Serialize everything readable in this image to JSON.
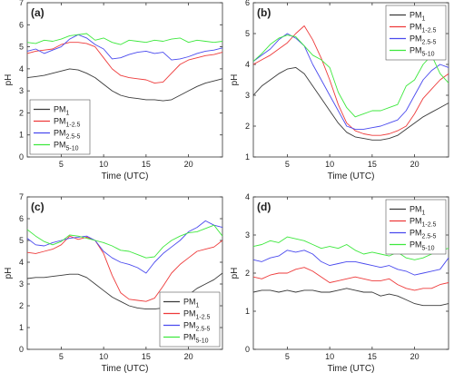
{
  "colors": {
    "PM1": "#3a3a3a",
    "PM1-2.5": "#ee3b3b",
    "PM2.5-5": "#4a4aee",
    "PM5-10": "#3ee83e"
  },
  "chart_data": [
    {
      "type": "line",
      "panel_label": "(a)",
      "xlabel": "Time (UTC)",
      "ylabel": "pH",
      "xlim": [
        1,
        24
      ],
      "ylim": [
        0,
        7
      ],
      "xticks": [
        5,
        10,
        15,
        20
      ],
      "yticks": [
        0,
        1,
        2,
        3,
        4,
        5,
        6,
        7
      ],
      "legend_position": "bottom-left",
      "x": [
        1,
        2,
        3,
        4,
        5,
        6,
        7,
        8,
        9,
        10,
        11,
        12,
        13,
        14,
        15,
        16,
        17,
        18,
        19,
        20,
        21,
        22,
        23,
        24
      ],
      "series": [
        {
          "name": "PM",
          "sub": "1",
          "color_key": "PM1",
          "values": [
            3.6,
            3.65,
            3.7,
            3.8,
            3.9,
            4.0,
            3.95,
            3.8,
            3.6,
            3.3,
            3.0,
            2.8,
            2.7,
            2.65,
            2.6,
            2.6,
            2.55,
            2.6,
            2.8,
            3.0,
            3.2,
            3.35,
            3.45,
            3.55
          ]
        },
        {
          "name": "PM",
          "sub": "1-2.5",
          "color_key": "PM1-2.5",
          "values": [
            4.7,
            4.8,
            4.85,
            4.9,
            5.1,
            5.2,
            5.2,
            5.15,
            5.0,
            4.5,
            4.0,
            3.7,
            3.6,
            3.55,
            3.5,
            3.35,
            3.4,
            3.8,
            4.2,
            4.4,
            4.5,
            4.6,
            4.65,
            4.75
          ]
        },
        {
          "name": "PM",
          "sub": "2.5-5",
          "color_key": "PM2.5-5",
          "values": [
            4.8,
            4.9,
            4.7,
            4.85,
            5.0,
            5.35,
            5.55,
            5.4,
            5.1,
            4.9,
            4.45,
            4.5,
            4.65,
            4.75,
            4.8,
            4.7,
            4.75,
            4.4,
            4.45,
            4.55,
            4.7,
            4.8,
            4.85,
            4.95
          ]
        },
        {
          "name": "PM",
          "sub": "5-10",
          "color_key": "PM5-10",
          "values": [
            5.2,
            5.15,
            5.3,
            5.25,
            5.35,
            5.5,
            5.55,
            5.6,
            5.3,
            5.4,
            5.2,
            5.1,
            5.3,
            5.25,
            5.2,
            5.3,
            5.25,
            5.35,
            5.4,
            5.2,
            5.3,
            5.25,
            5.2,
            5.25
          ]
        }
      ]
    },
    {
      "type": "line",
      "panel_label": "(b)",
      "xlabel": "Time (UTC)",
      "ylabel": "pH",
      "xlim": [
        1,
        24
      ],
      "ylim": [
        1,
        6
      ],
      "xticks": [
        5,
        10,
        15,
        20
      ],
      "yticks": [
        1,
        2,
        3,
        4,
        5,
        6
      ],
      "legend_position": "top-right",
      "x": [
        1,
        2,
        3,
        4,
        5,
        6,
        7,
        8,
        9,
        10,
        11,
        12,
        13,
        14,
        15,
        16,
        17,
        18,
        19,
        20,
        21,
        22,
        23,
        24
      ],
      "series": [
        {
          "name": "PM",
          "sub": "1",
          "color_key": "PM1",
          "values": [
            3.0,
            3.3,
            3.5,
            3.7,
            3.85,
            3.9,
            3.7,
            3.3,
            2.9,
            2.5,
            2.1,
            1.8,
            1.65,
            1.6,
            1.55,
            1.55,
            1.6,
            1.7,
            1.9,
            2.1,
            2.3,
            2.45,
            2.6,
            2.75
          ]
        },
        {
          "name": "PM",
          "sub": "1-2.5",
          "color_key": "PM1-2.5",
          "values": [
            4.0,
            4.15,
            4.3,
            4.5,
            4.7,
            5.0,
            5.25,
            4.8,
            4.2,
            3.5,
            2.7,
            2.1,
            1.85,
            1.75,
            1.7,
            1.7,
            1.75,
            1.85,
            2.0,
            2.4,
            2.9,
            3.2,
            3.5,
            3.7
          ]
        },
        {
          "name": "PM",
          "sub": "2.5-5",
          "color_key": "PM2.5-5",
          "values": [
            4.1,
            4.3,
            4.5,
            4.8,
            5.0,
            4.85,
            4.6,
            4.0,
            3.5,
            3.0,
            2.5,
            2.0,
            1.9,
            1.9,
            1.95,
            2.0,
            2.1,
            2.2,
            2.5,
            3.0,
            3.5,
            3.8,
            4.0,
            3.9
          ]
        },
        {
          "name": "PM",
          "sub": "5-10",
          "color_key": "PM5-10",
          "values": [
            4.1,
            4.35,
            4.65,
            4.85,
            4.95,
            4.9,
            4.6,
            4.3,
            4.15,
            3.9,
            3.1,
            2.6,
            2.3,
            2.4,
            2.5,
            2.5,
            2.6,
            2.7,
            3.3,
            3.5,
            4.0,
            4.3,
            3.7,
            3.4
          ]
        }
      ]
    },
    {
      "type": "line",
      "panel_label": "(c)",
      "xlabel": "Time (UTC)",
      "ylabel": "pH",
      "xlim": [
        1,
        24
      ],
      "ylim": [
        0,
        7
      ],
      "xticks": [
        5,
        10,
        15,
        20
      ],
      "yticks": [
        0,
        1,
        2,
        3,
        4,
        5,
        6,
        7
      ],
      "legend_position": "bottom-right",
      "x": [
        1,
        2,
        3,
        4,
        5,
        6,
        7,
        8,
        9,
        10,
        11,
        12,
        13,
        14,
        15,
        16,
        17,
        18,
        19,
        20,
        21,
        22,
        23,
        24
      ],
      "series": [
        {
          "name": "PM",
          "sub": "1",
          "color_key": "PM1",
          "values": [
            3.25,
            3.3,
            3.3,
            3.35,
            3.4,
            3.45,
            3.45,
            3.3,
            3.0,
            2.7,
            2.4,
            2.2,
            2.0,
            1.9,
            1.85,
            1.85,
            1.9,
            2.0,
            2.2,
            2.5,
            2.8,
            3.0,
            3.2,
            3.5
          ]
        },
        {
          "name": "PM",
          "sub": "1-2.5",
          "color_key": "PM1-2.5",
          "values": [
            4.45,
            4.4,
            4.5,
            4.6,
            4.8,
            5.2,
            5.05,
            5.15,
            5.0,
            4.4,
            3.4,
            2.6,
            2.3,
            2.25,
            2.2,
            2.35,
            2.9,
            3.5,
            3.9,
            4.2,
            4.5,
            4.6,
            4.7,
            5.0
          ]
        },
        {
          "name": "PM",
          "sub": "2.5-5",
          "color_key": "PM2.5-5",
          "values": [
            5.1,
            4.8,
            4.75,
            4.9,
            5.0,
            5.1,
            5.15,
            5.2,
            5.0,
            4.5,
            4.2,
            4.0,
            3.9,
            3.75,
            3.5,
            4.0,
            4.4,
            4.7,
            5.0,
            5.4,
            5.6,
            5.9,
            5.7,
            5.6
          ]
        },
        {
          "name": "PM",
          "sub": "5-10",
          "color_key": "PM5-10",
          "values": [
            5.5,
            5.2,
            4.95,
            4.8,
            4.95,
            5.25,
            5.2,
            5.1,
            5.0,
            4.9,
            4.75,
            4.55,
            4.5,
            4.35,
            4.2,
            4.25,
            4.7,
            5.0,
            5.2,
            5.35,
            5.4,
            5.55,
            5.7,
            5.2
          ]
        }
      ]
    },
    {
      "type": "line",
      "panel_label": "(d)",
      "xlabel": "Time (UTC)",
      "ylabel": "pH",
      "xlim": [
        1,
        24
      ],
      "ylim": [
        0,
        4
      ],
      "xticks": [
        5,
        10,
        15,
        20
      ],
      "yticks": [
        0,
        1,
        2,
        3,
        4
      ],
      "legend_position": "top-right",
      "x": [
        1,
        2,
        3,
        4,
        5,
        6,
        7,
        8,
        9,
        10,
        11,
        12,
        13,
        14,
        15,
        16,
        17,
        18,
        19,
        20,
        21,
        22,
        23,
        24
      ],
      "series": [
        {
          "name": "PM",
          "sub": "1",
          "color_key": "PM1",
          "values": [
            1.5,
            1.55,
            1.55,
            1.5,
            1.55,
            1.5,
            1.55,
            1.55,
            1.5,
            1.5,
            1.55,
            1.6,
            1.55,
            1.5,
            1.5,
            1.4,
            1.45,
            1.4,
            1.3,
            1.2,
            1.15,
            1.15,
            1.15,
            1.2
          ]
        },
        {
          "name": "PM",
          "sub": "1-2.5",
          "color_key": "PM1-2.5",
          "values": [
            1.9,
            1.85,
            1.95,
            2.0,
            2.0,
            2.1,
            2.15,
            2.05,
            1.9,
            1.75,
            1.8,
            1.85,
            1.9,
            1.85,
            1.8,
            1.8,
            1.85,
            1.7,
            1.6,
            1.55,
            1.6,
            1.6,
            1.7,
            1.75
          ]
        },
        {
          "name": "PM",
          "sub": "2.5-5",
          "color_key": "PM2.5-5",
          "values": [
            2.35,
            2.3,
            2.4,
            2.45,
            2.6,
            2.55,
            2.6,
            2.5,
            2.3,
            2.2,
            2.25,
            2.3,
            2.3,
            2.25,
            2.2,
            2.15,
            2.2,
            2.1,
            2.05,
            1.95,
            2.0,
            2.05,
            2.1,
            2.4
          ]
        },
        {
          "name": "PM",
          "sub": "5-10",
          "color_key": "PM5-10",
          "values": [
            2.7,
            2.75,
            2.85,
            2.8,
            2.95,
            2.9,
            2.85,
            2.75,
            2.65,
            2.7,
            2.65,
            2.75,
            2.6,
            2.5,
            2.55,
            2.5,
            2.45,
            2.55,
            2.4,
            2.35,
            2.4,
            2.5,
            2.6,
            2.65
          ]
        }
      ]
    }
  ]
}
